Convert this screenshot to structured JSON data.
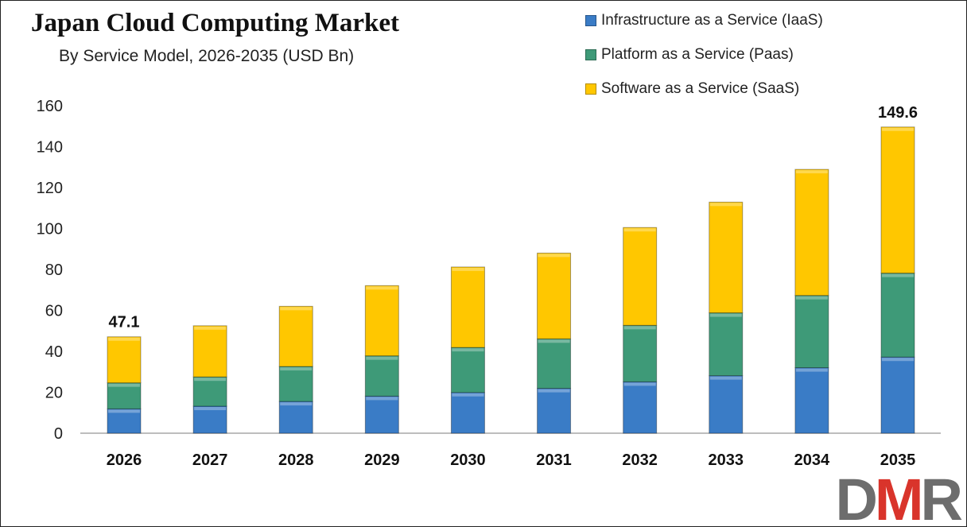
{
  "chart_data": {
    "type": "bar",
    "stacked": true,
    "title": "Japan Cloud Computing Market",
    "subtitle": "By Service Model, 2026-2035 (USD Bn)",
    "xlabel": "",
    "ylabel": "",
    "ylim": [
      0,
      160
    ],
    "yticks": [
      0,
      20,
      40,
      60,
      80,
      100,
      120,
      140,
      160
    ],
    "grid": false,
    "legend_position": "top-right",
    "categories": [
      "2026",
      "2027",
      "2028",
      "2029",
      "2030",
      "2031",
      "2032",
      "2033",
      "2034",
      "2035"
    ],
    "series": [
      {
        "name": "Infrastructure as a Service (IaaS)",
        "color": "#3a7cc6",
        "values": [
          11.9,
          13.2,
          15.5,
          18.1,
          19.9,
          21.9,
          25.1,
          28.1,
          32.0,
          37.2
        ]
      },
      {
        "name": "Platform as a Service (Paas)",
        "color": "#3e9a78",
        "values": [
          12.7,
          14.3,
          17.1,
          19.7,
          22.0,
          24.2,
          27.6,
          30.7,
          35.3,
          41.0
        ]
      },
      {
        "name": "Software as a Service (SaaS)",
        "color": "#ffc700",
        "values": [
          22.5,
          25.0,
          29.4,
          34.3,
          39.3,
          41.9,
          47.8,
          54.1,
          61.6,
          71.4
        ]
      }
    ],
    "data_labels": [
      {
        "category": "2026",
        "text": "47.1"
      },
      {
        "category": "2035",
        "text": "149.6"
      }
    ]
  },
  "logo": {
    "text": "DMR",
    "d": "D",
    "m": "M",
    "r": "R",
    "colors": {
      "d": "#6d6d6d",
      "m": "#d9342b",
      "r": "#6d6d6d"
    }
  }
}
